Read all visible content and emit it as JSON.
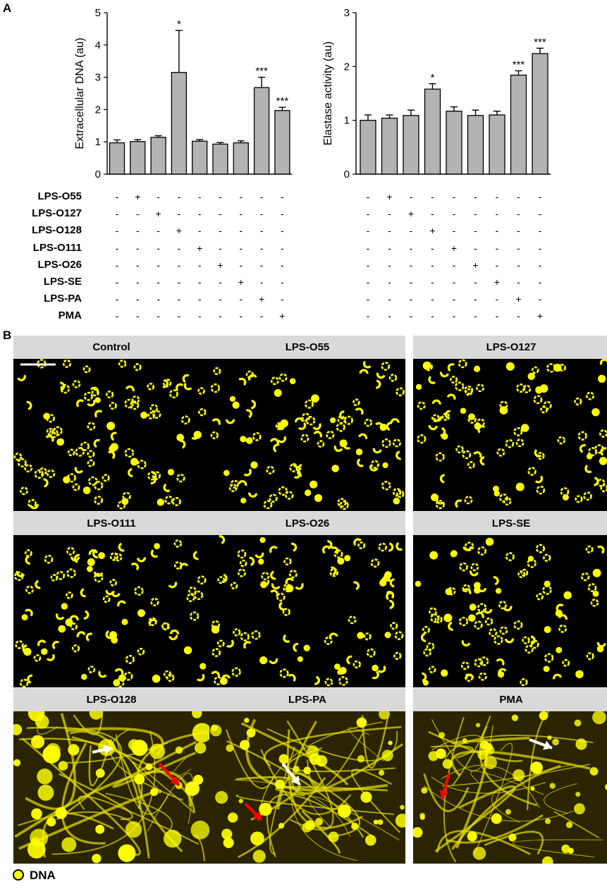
{
  "panel_a_letter": "A",
  "panel_b_letter": "B",
  "chart_data": [
    {
      "type": "bar",
      "ylabel": "Extracellular DNA (au)",
      "ylim": [
        0,
        5
      ],
      "yticks": [
        "0",
        "1",
        "2",
        "3",
        "4",
        "5"
      ],
      "values": [
        0.97,
        1.01,
        1.14,
        3.15,
        1.02,
        0.93,
        0.97,
        2.68,
        1.97
      ],
      "errors": [
        0.09,
        0.06,
        0.05,
        1.3,
        0.05,
        0.05,
        0.06,
        0.32,
        0.1
      ],
      "significance": [
        "",
        "",
        "",
        "*",
        "",
        "",
        "",
        "***",
        "***"
      ]
    },
    {
      "type": "bar",
      "ylabel": "Elastase activity (au)",
      "ylim": [
        0,
        3
      ],
      "yticks": [
        "0",
        "1",
        "2",
        "3"
      ],
      "values": [
        1.0,
        1.04,
        1.09,
        1.58,
        1.17,
        1.09,
        1.1,
        1.84,
        2.24
      ],
      "errors": [
        0.1,
        0.06,
        0.1,
        0.1,
        0.08,
        0.1,
        0.07,
        0.08,
        0.1
      ],
      "significance": [
        "",
        "",
        "",
        "*",
        "",
        "",
        "",
        "***",
        "***"
      ]
    }
  ],
  "treatment_rows": [
    "LPS-O55",
    "LPS-O127",
    "LPS-O128",
    "LPS-O111",
    "LPS-O26",
    "LPS-SE",
    "LPS-PA",
    "PMA"
  ],
  "mark_plus": "+",
  "mark_minus": "-",
  "tiles": [
    {
      "title": "Control",
      "condition": "resting"
    },
    {
      "title": "LPS-O55",
      "condition": "resting"
    },
    {
      "title": "LPS-O127",
      "condition": "resting"
    },
    {
      "title": "LPS-O111",
      "condition": "resting"
    },
    {
      "title": "LPS-O26",
      "condition": "resting"
    },
    {
      "title": "LPS-SE",
      "condition": "resting"
    },
    {
      "title": "LPS-O128",
      "condition": "nets"
    },
    {
      "title": "LPS-PA",
      "condition": "nets"
    },
    {
      "title": "PMA",
      "condition": "nets"
    }
  ],
  "legend_label": "DNA",
  "colors": {
    "bar": "#b3b3b3",
    "dna": "#ffff00",
    "header": "#d9d9d9",
    "white_arrow": "#ffffff",
    "red_arrow": "#ff0000"
  }
}
